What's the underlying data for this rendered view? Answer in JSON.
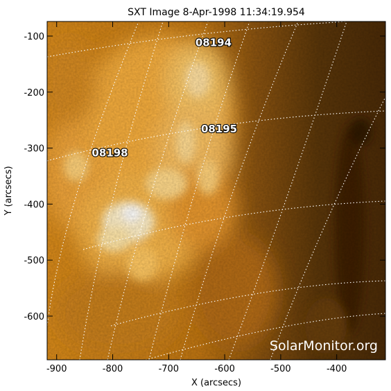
{
  "image": {
    "title": "SXT Image  8-Apr-1998 11:34:19.954",
    "watermark": "SolarMonitor.org",
    "colors": {
      "background": "#ffffff",
      "sun_bright": "#fff4d8",
      "sun_mid": "#f2a020",
      "sun_dark": "#4a2a08",
      "grid": "#ffffff"
    },
    "axes": {
      "xlabel": "X (arcsecs)",
      "ylabel": "Y (arcsecs)",
      "xlim": [
        -917,
        -313
      ],
      "ylim": [
        -678,
        -74
      ],
      "xticks": [
        {
          "value": -900,
          "label": "-900"
        },
        {
          "value": -800,
          "label": "-800"
        },
        {
          "value": -700,
          "label": "-700"
        },
        {
          "value": -600,
          "label": "-600"
        },
        {
          "value": -500,
          "label": "-500"
        },
        {
          "value": -400,
          "label": "-400"
        }
      ],
      "yticks": [
        {
          "value": -100,
          "label": "-100"
        },
        {
          "value": -200,
          "label": "-200"
        },
        {
          "value": -300,
          "label": "-300"
        },
        {
          "value": -400,
          "label": "-400"
        },
        {
          "value": -500,
          "label": "-500"
        },
        {
          "value": -600,
          "label": "-600"
        }
      ]
    },
    "active_regions": [
      {
        "label": "08194",
        "x": -620,
        "y": -118
      },
      {
        "label": "08195",
        "x": -610,
        "y": -272
      },
      {
        "label": "08198",
        "x": -805,
        "y": -315
      }
    ]
  }
}
